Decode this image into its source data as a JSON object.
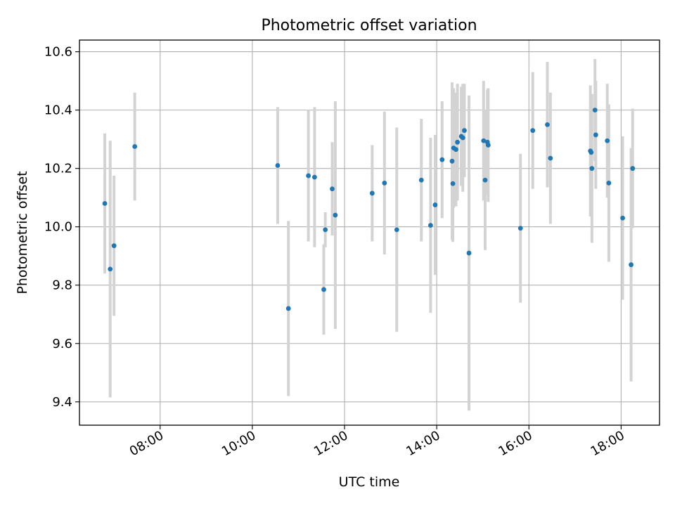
{
  "chart_data": {
    "type": "scatter",
    "title": "Photometric offset variation",
    "xlabel": "UTC time",
    "ylabel": "Photometric offset",
    "x_type": "time",
    "xlim": [
      "06:15",
      "18:50"
    ],
    "ylim": [
      9.32,
      10.64
    ],
    "x_ticks": [
      "08:00",
      "10:00",
      "12:00",
      "14:00",
      "16:00",
      "18:00"
    ],
    "y_ticks": [
      9.4,
      9.6,
      9.8,
      10.0,
      10.2,
      10.4,
      10.6
    ],
    "x_tick_labels": [
      "08:00",
      "10:00",
      "12:00",
      "14:00",
      "16:00",
      "18:00"
    ],
    "y_tick_labels": [
      "9.4",
      "9.6",
      "9.8",
      "10.0",
      "10.2",
      "10.4",
      "10.6"
    ],
    "grid": true,
    "legend": false,
    "colors": {
      "points": "#1f77b4",
      "error_bars": "#d3d3d3"
    },
    "series": [
      {
        "x": [
          "06:48",
          "06:55",
          "07:00",
          "07:27",
          "10:33",
          "10:47",
          "11:13",
          "11:21",
          "11:33",
          "11:35",
          "11:44",
          "11:48",
          "12:36",
          "12:52",
          "13:08",
          "13:40",
          "13:52",
          "13:58",
          "14:07",
          "14:20",
          "14:21",
          "14:22",
          "14:25",
          "14:27",
          "14:32",
          "14:34",
          "14:36",
          "14:42",
          "15:01",
          "15:03",
          "15:06",
          "15:07",
          "15:49",
          "16:05",
          "16:24",
          "16:28",
          "17:20",
          "17:21",
          "17:22",
          "17:26",
          "17:27",
          "17:42",
          "17:44",
          "18:02",
          "18:13",
          "18:15"
        ],
        "y": [
          10.08,
          9.855,
          9.935,
          10.275,
          10.21,
          9.72,
          10.175,
          10.17,
          9.785,
          9.99,
          10.13,
          10.04,
          10.115,
          10.15,
          9.99,
          10.16,
          10.005,
          10.075,
          10.23,
          10.225,
          10.148,
          10.27,
          10.265,
          10.29,
          10.31,
          10.305,
          10.33,
          9.91,
          10.295,
          10.16,
          10.29,
          10.28,
          9.995,
          10.33,
          10.35,
          10.235,
          10.26,
          10.255,
          10.2,
          10.4,
          10.315,
          10.295,
          10.15,
          10.03,
          9.87,
          10.2
        ],
        "yerr": [
          0.24,
          0.44,
          0.24,
          0.185,
          0.2,
          0.3,
          0.225,
          0.24,
          0.155,
          0.06,
          0.16,
          0.39,
          0.165,
          0.245,
          0.35,
          0.21,
          0.3,
          0.24,
          0.2,
          0.27,
          0.2,
          0.205,
          0.195,
          0.2,
          0.17,
          0.185,
          0.16,
          0.54,
          0.205,
          0.24,
          0.18,
          0.195,
          0.255,
          0.2,
          0.215,
          0.225,
          0.225,
          0.2,
          0.255,
          0.175,
          0.185,
          0.195,
          0.27,
          0.28,
          0.4,
          0.205
        ]
      }
    ]
  }
}
